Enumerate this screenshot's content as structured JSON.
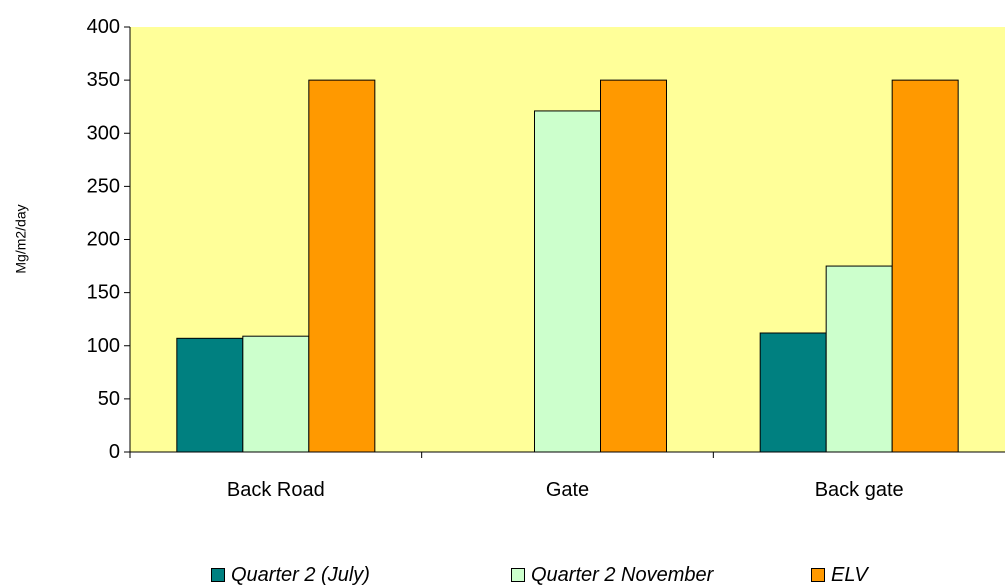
{
  "chart_data": {
    "type": "bar",
    "title": "",
    "xlabel": "",
    "ylabel": "Mg/m2/day",
    "ylim": [
      0,
      400
    ],
    "yticks": [
      0,
      50,
      100,
      150,
      200,
      250,
      300,
      350,
      400
    ],
    "categories": [
      "Back Road",
      "Gate",
      "Back gate"
    ],
    "series": [
      {
        "name": "Quarter 2 (July)",
        "values": [
          107,
          null,
          112
        ],
        "color": "#008080"
      },
      {
        "name": "Quarter 2 November",
        "values": [
          109,
          321,
          175
        ],
        "color": "#ccffcc"
      },
      {
        "name": "ELV",
        "values": [
          350,
          350,
          350
        ],
        "color": "#ff9900"
      }
    ],
    "plot_background": "#ffff99",
    "grid": false,
    "legend_position": "bottom"
  }
}
